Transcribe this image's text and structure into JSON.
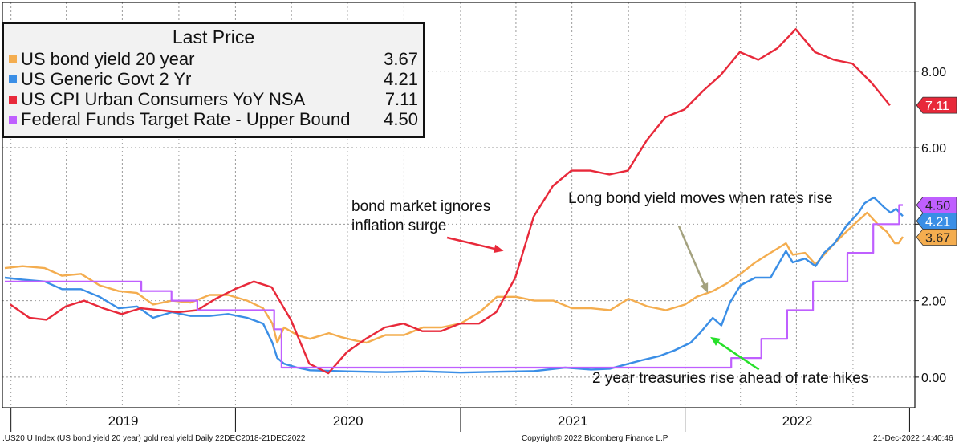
{
  "chart_data": {
    "type": "line",
    "y_axis": {
      "side": "right",
      "range": [
        -0.8,
        9.8
      ],
      "ticks": [
        "0.00",
        "2.00",
        "4.00",
        "6.00",
        "8.00"
      ]
    },
    "x_axis": {
      "range": [
        "2018-12-22",
        "2022-12-21"
      ],
      "year_labels": [
        "2019",
        "2020",
        "2021",
        "2022"
      ]
    },
    "grid": true,
    "legend": {
      "title": "Last Price",
      "placement": "top-left",
      "entries": [
        {
          "name": "US bond yield 20 year",
          "value": "3.67",
          "color": "#f4ad4f"
        },
        {
          "name": "US Generic Govt 2 Yr",
          "value": "4.21",
          "color": "#3a8ee6"
        },
        {
          "name": "US CPI Urban Consumers YoY NSA",
          "value": "7.11",
          "color": "#e8293a"
        },
        {
          "name": "Federal Funds Target Rate - Upper Bound",
          "value": "4.50",
          "color": "#bf5fff"
        }
      ]
    },
    "last_value_badges": [
      {
        "label": "4.50",
        "value": 4.5,
        "color": "#bf5fff",
        "text_color": "#222222"
      },
      {
        "label": "4.21",
        "value": 4.21,
        "color": "#3a8ee6",
        "text_color": "#ffffff"
      },
      {
        "label": "3.67",
        "value": 3.67,
        "color": "#f4ad4f",
        "text_color": "#222222"
      },
      {
        "label": "7.11",
        "value": 7.11,
        "color": "#e8293a",
        "text_color": "#ffffff"
      }
    ],
    "series": [
      {
        "name": "US bond yield 20 year",
        "color": "#f4ad4f",
        "points": [
          [
            "2018-12-22",
            2.85
          ],
          [
            "2019-01-20",
            2.9
          ],
          [
            "2019-02-25",
            2.85
          ],
          [
            "2019-03-25",
            2.65
          ],
          [
            "2019-04-25",
            2.7
          ],
          [
            "2019-05-25",
            2.4
          ],
          [
            "2019-06-25",
            2.25
          ],
          [
            "2019-07-25",
            2.2
          ],
          [
            "2019-08-20",
            1.9
          ],
          [
            "2019-09-20",
            2.0
          ],
          [
            "2019-10-20",
            1.95
          ],
          [
            "2019-11-20",
            2.15
          ],
          [
            "2019-12-20",
            2.15
          ],
          [
            "2020-01-20",
            2.0
          ],
          [
            "2020-02-15",
            1.8
          ],
          [
            "2020-03-01",
            1.4
          ],
          [
            "2020-03-09",
            0.9
          ],
          [
            "2020-03-20",
            1.3
          ],
          [
            "2020-04-10",
            1.1
          ],
          [
            "2020-05-01",
            1.0
          ],
          [
            "2020-06-01",
            1.15
          ],
          [
            "2020-06-20",
            1.05
          ],
          [
            "2020-07-15",
            0.95
          ],
          [
            "2020-08-01",
            0.9
          ],
          [
            "2020-09-01",
            1.1
          ],
          [
            "2020-10-01",
            1.1
          ],
          [
            "2020-11-01",
            1.3
          ],
          [
            "2020-12-01",
            1.3
          ],
          [
            "2021-01-01",
            1.4
          ],
          [
            "2021-02-01",
            1.7
          ],
          [
            "2021-03-01",
            2.1
          ],
          [
            "2021-04-01",
            2.1
          ],
          [
            "2021-05-01",
            2.0
          ],
          [
            "2021-06-01",
            2.0
          ],
          [
            "2021-07-01",
            1.8
          ],
          [
            "2021-08-01",
            1.8
          ],
          [
            "2021-09-01",
            1.75
          ],
          [
            "2021-10-01",
            2.05
          ],
          [
            "2021-11-01",
            1.85
          ],
          [
            "2021-12-01",
            1.75
          ],
          [
            "2022-01-01",
            1.9
          ],
          [
            "2022-01-20",
            2.1
          ],
          [
            "2022-02-15",
            2.25
          ],
          [
            "2022-03-10",
            2.45
          ],
          [
            "2022-04-01",
            2.7
          ],
          [
            "2022-04-25",
            3.0
          ],
          [
            "2022-05-15",
            3.2
          ],
          [
            "2022-06-14",
            3.5
          ],
          [
            "2022-06-25",
            3.2
          ],
          [
            "2022-07-15",
            3.25
          ],
          [
            "2022-08-01",
            2.95
          ],
          [
            "2022-08-15",
            3.2
          ],
          [
            "2022-09-01",
            3.5
          ],
          [
            "2022-09-20",
            3.8
          ],
          [
            "2022-10-10",
            4.1
          ],
          [
            "2022-10-24",
            4.3
          ],
          [
            "2022-11-10",
            4.0
          ],
          [
            "2022-11-25",
            3.8
          ],
          [
            "2022-12-08",
            3.5
          ],
          [
            "2022-12-14",
            3.5
          ],
          [
            "2022-12-21",
            3.67
          ]
        ]
      },
      {
        "name": "US Generic Govt 2 Yr",
        "color": "#3a8ee6",
        "points": [
          [
            "2018-12-22",
            2.6
          ],
          [
            "2019-01-20",
            2.55
          ],
          [
            "2019-02-25",
            2.5
          ],
          [
            "2019-03-25",
            2.3
          ],
          [
            "2019-04-25",
            2.3
          ],
          [
            "2019-05-25",
            2.1
          ],
          [
            "2019-06-25",
            1.8
          ],
          [
            "2019-07-25",
            1.85
          ],
          [
            "2019-08-20",
            1.55
          ],
          [
            "2019-09-20",
            1.7
          ],
          [
            "2019-10-20",
            1.6
          ],
          [
            "2019-11-20",
            1.6
          ],
          [
            "2019-12-20",
            1.65
          ],
          [
            "2020-01-20",
            1.55
          ],
          [
            "2020-02-15",
            1.4
          ],
          [
            "2020-03-01",
            0.9
          ],
          [
            "2020-03-09",
            0.5
          ],
          [
            "2020-03-20",
            0.35
          ],
          [
            "2020-04-10",
            0.25
          ],
          [
            "2020-05-01",
            0.18
          ],
          [
            "2020-07-01",
            0.15
          ],
          [
            "2020-09-01",
            0.13
          ],
          [
            "2020-11-01",
            0.15
          ],
          [
            "2021-01-01",
            0.12
          ],
          [
            "2021-03-01",
            0.14
          ],
          [
            "2021-05-01",
            0.16
          ],
          [
            "2021-06-20",
            0.25
          ],
          [
            "2021-08-01",
            0.2
          ],
          [
            "2021-09-01",
            0.22
          ],
          [
            "2021-10-01",
            0.35
          ],
          [
            "2021-10-25",
            0.45
          ],
          [
            "2021-11-20",
            0.55
          ],
          [
            "2021-12-15",
            0.7
          ],
          [
            "2022-01-10",
            0.9
          ],
          [
            "2022-01-25",
            1.15
          ],
          [
            "2022-02-15",
            1.55
          ],
          [
            "2022-03-01",
            1.35
          ],
          [
            "2022-03-15",
            1.95
          ],
          [
            "2022-04-01",
            2.4
          ],
          [
            "2022-04-25",
            2.6
          ],
          [
            "2022-05-20",
            2.6
          ],
          [
            "2022-06-14",
            3.3
          ],
          [
            "2022-06-25",
            3.0
          ],
          [
            "2022-07-15",
            3.1
          ],
          [
            "2022-08-01",
            2.9
          ],
          [
            "2022-08-15",
            3.25
          ],
          [
            "2022-09-01",
            3.5
          ],
          [
            "2022-09-20",
            3.95
          ],
          [
            "2022-10-10",
            4.3
          ],
          [
            "2022-10-20",
            4.55
          ],
          [
            "2022-11-04",
            4.7
          ],
          [
            "2022-11-20",
            4.45
          ],
          [
            "2022-12-01",
            4.3
          ],
          [
            "2022-12-10",
            4.4
          ],
          [
            "2022-12-21",
            4.21
          ]
        ]
      },
      {
        "name": "US CPI Urban Consumers YoY NSA",
        "color": "#e8293a",
        "points": [
          [
            "2018-12-31",
            1.9
          ],
          [
            "2019-01-31",
            1.55
          ],
          [
            "2019-02-28",
            1.5
          ],
          [
            "2019-03-31",
            1.85
          ],
          [
            "2019-04-30",
            2.0
          ],
          [
            "2019-05-31",
            1.8
          ],
          [
            "2019-06-30",
            1.65
          ],
          [
            "2019-07-31",
            1.8
          ],
          [
            "2019-08-31",
            1.75
          ],
          [
            "2019-09-30",
            1.7
          ],
          [
            "2019-10-31",
            1.75
          ],
          [
            "2019-11-30",
            2.05
          ],
          [
            "2019-12-31",
            2.3
          ],
          [
            "2020-01-31",
            2.5
          ],
          [
            "2020-02-29",
            2.35
          ],
          [
            "2020-03-31",
            1.5
          ],
          [
            "2020-04-30",
            0.35
          ],
          [
            "2020-05-31",
            0.1
          ],
          [
            "2020-06-30",
            0.65
          ],
          [
            "2020-07-31",
            1.0
          ],
          [
            "2020-08-31",
            1.3
          ],
          [
            "2020-09-30",
            1.4
          ],
          [
            "2020-10-31",
            1.2
          ],
          [
            "2020-11-30",
            1.2
          ],
          [
            "2020-12-31",
            1.4
          ],
          [
            "2021-01-31",
            1.4
          ],
          [
            "2021-02-28",
            1.7
          ],
          [
            "2021-03-31",
            2.6
          ],
          [
            "2021-04-30",
            4.2
          ],
          [
            "2021-05-31",
            5.0
          ],
          [
            "2021-06-30",
            5.4
          ],
          [
            "2021-07-31",
            5.4
          ],
          [
            "2021-08-31",
            5.3
          ],
          [
            "2021-09-30",
            5.4
          ],
          [
            "2021-10-31",
            6.2
          ],
          [
            "2021-11-30",
            6.8
          ],
          [
            "2021-12-31",
            7.0
          ],
          [
            "2022-01-31",
            7.5
          ],
          [
            "2022-02-28",
            7.9
          ],
          [
            "2022-03-31",
            8.5
          ],
          [
            "2022-04-30",
            8.3
          ],
          [
            "2022-05-31",
            8.6
          ],
          [
            "2022-06-30",
            9.1
          ],
          [
            "2022-07-31",
            8.5
          ],
          [
            "2022-08-31",
            8.3
          ],
          [
            "2022-09-30",
            8.2
          ],
          [
            "2022-10-31",
            7.7
          ],
          [
            "2022-11-30",
            7.11
          ]
        ]
      },
      {
        "name": "Federal Funds Target Rate - Upper Bound",
        "color": "#bf5fff",
        "step": true,
        "points": [
          [
            "2018-12-22",
            2.5
          ],
          [
            "2019-08-01",
            2.25
          ],
          [
            "2019-09-19",
            2.0
          ],
          [
            "2019-10-31",
            1.75
          ],
          [
            "2020-03-04",
            1.25
          ],
          [
            "2020-03-16",
            0.25
          ],
          [
            "2022-03-17",
            0.5
          ],
          [
            "2022-05-05",
            1.0
          ],
          [
            "2022-06-16",
            1.75
          ],
          [
            "2022-07-28",
            2.5
          ],
          [
            "2022-09-22",
            3.25
          ],
          [
            "2022-11-03",
            4.0
          ],
          [
            "2022-12-15",
            4.5
          ],
          [
            "2022-12-21",
            4.5
          ]
        ]
      }
    ],
    "annotations": [
      {
        "text": "bond market ignores",
        "line": 1
      },
      {
        "text": "inflation surge",
        "line": 2
      },
      {
        "text": "Long bond yield moves when rates rise",
        "line": 1
      },
      {
        "text": "2 year treasuries rise ahead of rate hikes",
        "line": 1
      }
    ],
    "arrows": [
      {
        "name": "red-arrow",
        "color": "#e8293a",
        "from": [
          "2020-12-10",
          3.65
        ],
        "to": [
          "2021-03-12",
          3.3
        ]
      },
      {
        "name": "olive-arrow",
        "color": "#a4a27f",
        "from": [
          "2021-12-22",
          3.95
        ],
        "to": [
          "2022-02-07",
          2.2
        ]
      },
      {
        "name": "green-arrow",
        "color": "#27e02a",
        "from": [
          "2022-05-01",
          0.2
        ],
        "to": [
          "2022-02-11",
          1.05
        ]
      }
    ]
  },
  "annotations_text": {
    "a1_line1": "bond market ignores",
    "a1_line2": "inflation surge",
    "a2": "Long bond yield moves when rates rise",
    "a3": "2 year treasuries rise ahead of rate hikes"
  },
  "footer": {
    "left": ".US20 U Index (US bond yield 20 year) gold real yield  Daily 22DEC2018-21DEC2022",
    "center": "Copyright© 2022 Bloomberg Finance L.P.",
    "right": "21-Dec-2022 14:40:46"
  }
}
